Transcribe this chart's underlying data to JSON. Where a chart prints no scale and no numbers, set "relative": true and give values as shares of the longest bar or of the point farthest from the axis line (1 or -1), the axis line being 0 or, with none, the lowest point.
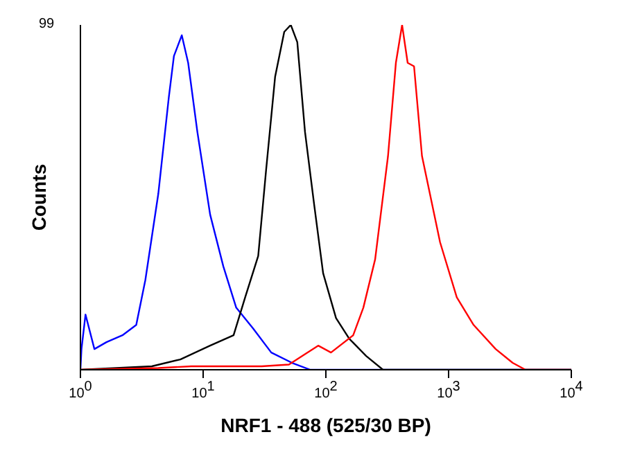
{
  "chart_data": {
    "type": "line",
    "xlabel": "NRF1 - 488 (525/30 BP)",
    "ylabel": "Counts",
    "annotations": [
      "99"
    ],
    "relative": true,
    "log": "x",
    "xlim": [
      1,
      10000
    ],
    "xticks": [
      {
        "value": 1,
        "label": "10$^{0}$"
      },
      {
        "value": 10,
        "label": "10$^{1}$"
      },
      {
        "value": 100,
        "label": "10$^{2}$"
      },
      {
        "value": 1000,
        "label": "10$^{3}$"
      },
      {
        "value": 10000,
        "label": "10$^{4}$"
      }
    ],
    "line_style": "solid",
    "series": [
      {
        "color": "#0000ff",
        "x": [
          1,
          1.02,
          1.1,
          1.3,
          1.63,
          2.2,
          2.85,
          3.38,
          4.31,
          5.25,
          5.78,
          6.7,
          7.55,
          8.97,
          11.4,
          14.6,
          18.6,
          25.5,
          35.9,
          53,
          74.7,
          10000
        ],
        "values": [
          0,
          0.06,
          0.16,
          0.06,
          0.08,
          0.1,
          0.13,
          0.26,
          0.51,
          0.79,
          0.91,
          0.97,
          0.89,
          0.69,
          0.45,
          0.3,
          0.18,
          0.12,
          0.05,
          0.02,
          0,
          0
        ]
      },
      {
        "color": "#000000",
        "x": [
          1,
          3.82,
          6.52,
          11.4,
          17.7,
          22,
          28.1,
          32.6,
          38.6,
          45.8,
          51.8,
          58.5,
          67.6,
          80.2,
          95,
          121,
          155,
          213,
          292,
          10000
        ],
        "values": [
          0,
          0.01,
          0.03,
          0.07,
          0.1,
          0.21,
          0.33,
          0.58,
          0.85,
          0.98,
          1,
          0.95,
          0.69,
          0.48,
          0.28,
          0.15,
          0.09,
          0.04,
          0,
          0
        ]
      },
      {
        "color": "#ff0000",
        "x": [
          1,
          4.31,
          8,
          15,
          30,
          50,
          86.6,
          110,
          167,
          202,
          252,
          321,
          372,
          418,
          464,
          523,
          607,
          852,
          1166,
          1599,
          2420,
          3327,
          4232,
          10000
        ],
        "values": [
          0,
          0.005,
          0.01,
          0.01,
          0.01,
          0.015,
          0.07,
          0.05,
          0.1,
          0.18,
          0.32,
          0.62,
          0.89,
          1,
          0.89,
          0.88,
          0.62,
          0.37,
          0.21,
          0.13,
          0.06,
          0.02,
          0,
          0
        ]
      }
    ]
  }
}
